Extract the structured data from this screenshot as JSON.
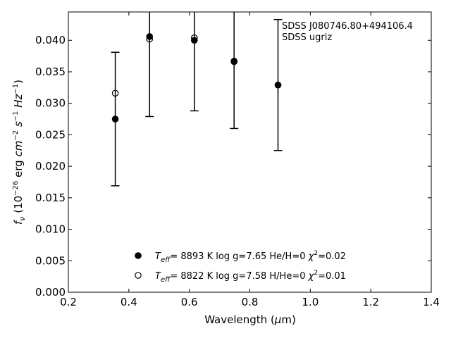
{
  "chart_data": {
    "type": "scatter",
    "annotations": [
      "SDSS J080746.80+494106.4",
      "SDSS ugriz"
    ],
    "xlabel": "Wavelength (μm)",
    "ylabel": "fν (10⁻²⁶ erg cm⁻² s⁻¹ Hz⁻¹)",
    "xlim": [
      0.2,
      1.4
    ],
    "ylim": [
      0.0,
      0.0445
    ],
    "xticks": [
      "0.2",
      "0.4",
      "0.6",
      "0.8",
      "1.0",
      "1.2",
      "1.4"
    ],
    "yticks": [
      "0.000",
      "0.005",
      "0.010",
      "0.015",
      "0.020",
      "0.025",
      "0.030",
      "0.035",
      "0.040"
    ],
    "grid": false,
    "legend_position": "bottom-center",
    "observed": {
      "x": [
        0.3551,
        0.4686,
        0.6166,
        0.748,
        0.8932
      ],
      "y": [
        0.0275,
        0.0405,
        0.0399,
        0.0365,
        0.0329
      ],
      "err": [
        0.0106,
        0.0126,
        0.0111,
        0.0105,
        0.0104
      ]
    },
    "series": [
      {
        "name": "T_eff= 8893 K log g=7.65 He/H=0 χ²=0.02",
        "marker": "filled",
        "x": [
          0.3551,
          0.4686,
          0.6166,
          0.748,
          0.8932
        ],
        "y": [
          0.0275,
          0.0406,
          0.04,
          0.0367,
          0.0329
        ]
      },
      {
        "name": "T_eff= 8822 K log g=7.58 H/He=0 χ²=0.01",
        "marker": "open",
        "x": [
          0.3551,
          0.4686,
          0.6166,
          0.748,
          0.8932
        ],
        "y": [
          0.0316,
          0.0402,
          0.0404,
          0.0366,
          0.0329
        ]
      }
    ],
    "legend": [
      {
        "marker": "filled",
        "teff": "8893 K",
        "logg": "log g=7.65",
        "comp": "He/H=0",
        "chi": "=0.02"
      },
      {
        "marker": "open",
        "teff": "8822 K",
        "logg": "log g=7.58",
        "comp": "H/He=0",
        "chi": "=0.01"
      }
    ]
  }
}
